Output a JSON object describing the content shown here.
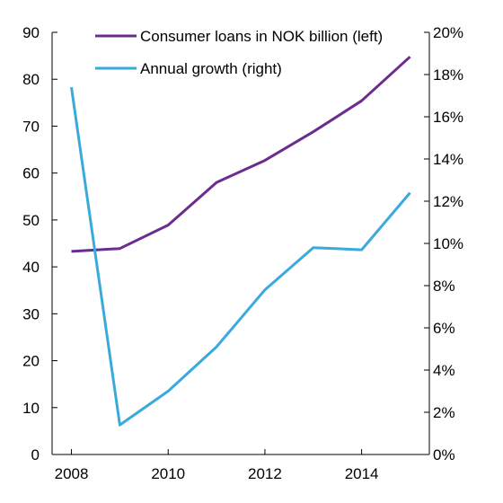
{
  "chart_data": {
    "type": "line",
    "x": [
      2008,
      2009,
      2010,
      2011,
      2012,
      2013,
      2014,
      2015
    ],
    "x_ticks": [
      "2008",
      "2010",
      "2012",
      "2014"
    ],
    "xlim": [
      2007.6,
      2015.4
    ],
    "y_left": {
      "lim": [
        0,
        90
      ],
      "ticks": [
        "0",
        "10",
        "20",
        "30",
        "40",
        "50",
        "60",
        "70",
        "80",
        "90"
      ]
    },
    "y_right": {
      "lim": [
        0,
        20
      ],
      "ticks": [
        "0%",
        "2%",
        "4%",
        "6%",
        "8%",
        "10%",
        "12%",
        "14%",
        "16%",
        "18%",
        "20%"
      ]
    },
    "legend_placement": "top",
    "grid": false,
    "series": [
      {
        "name": "Consumer loans in NOK billion (left)",
        "axis": "left",
        "color": "#6b2c8f",
        "values": [
          43.3,
          43.9,
          48.9,
          58.0,
          62.7,
          68.8,
          75.4,
          84.8
        ]
      },
      {
        "name": "Annual growth (right)",
        "axis": "right",
        "color": "#3aaadc",
        "values": [
          17.4,
          1.4,
          3.0,
          5.1,
          7.8,
          9.8,
          9.7,
          12.4
        ]
      }
    ]
  }
}
